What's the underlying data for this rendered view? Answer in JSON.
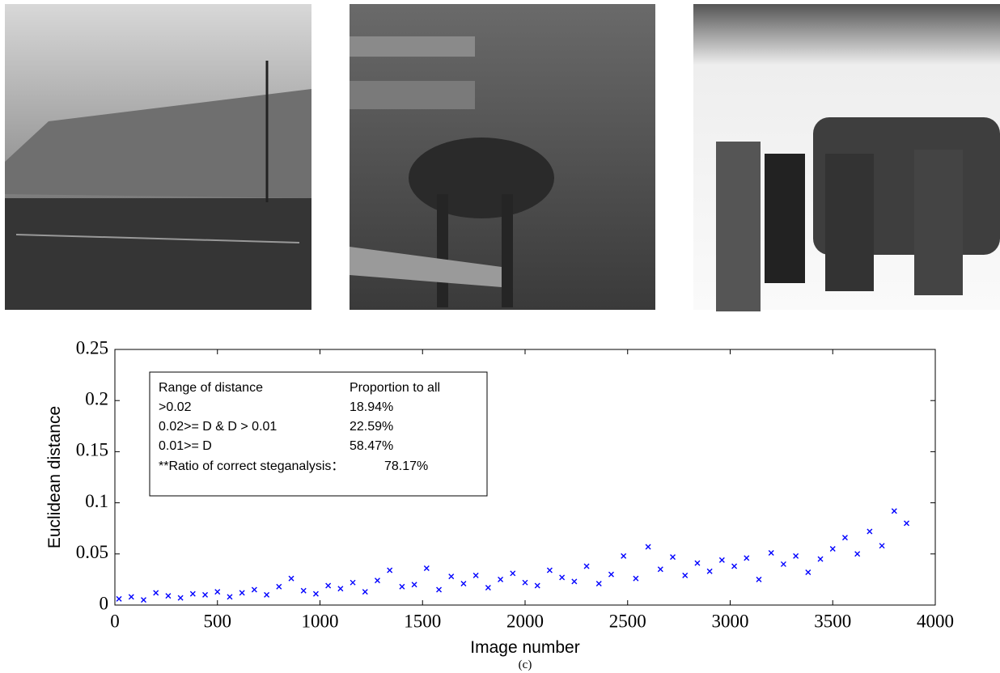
{
  "chart_data": {
    "type": "scatter",
    "marker": "x",
    "color": "#0000ff",
    "grid": false,
    "xlabel": "Image number",
    "ylabel": "Euclidean distance",
    "caption": "(c)",
    "xlim": [
      0,
      4000
    ],
    "xticks": [
      0,
      500,
      1000,
      1500,
      2000,
      2500,
      3000,
      3500,
      4000
    ],
    "ylim": [
      0,
      0.25
    ],
    "yticks": [
      0,
      0.05,
      0.1,
      0.15,
      0.2,
      0.25
    ],
    "x": [
      20,
      80,
      140,
      200,
      260,
      320,
      380,
      440,
      500,
      560,
      620,
      680,
      740,
      800,
      860,
      920,
      980,
      1040,
      1100,
      1160,
      1220,
      1280,
      1340,
      1400,
      1460,
      1520,
      1580,
      1640,
      1700,
      1760,
      1820,
      1880,
      1940,
      2000,
      2060,
      2120,
      2180,
      2240,
      2300,
      2360,
      2420,
      2480,
      2540,
      2600,
      2660,
      2720,
      2780,
      2840,
      2900,
      2960,
      3020,
      3080,
      3140,
      3200,
      3260,
      3320,
      3380,
      3440,
      3500,
      3560,
      3620,
      3680,
      3740,
      3800,
      3860
    ],
    "values": [
      0.006,
      0.008,
      0.005,
      0.012,
      0.009,
      0.007,
      0.011,
      0.01,
      0.013,
      0.008,
      0.012,
      0.015,
      0.01,
      0.018,
      0.026,
      0.014,
      0.011,
      0.019,
      0.016,
      0.022,
      0.013,
      0.024,
      0.034,
      0.018,
      0.02,
      0.036,
      0.015,
      0.028,
      0.021,
      0.029,
      0.017,
      0.025,
      0.031,
      0.022,
      0.019,
      0.034,
      0.027,
      0.023,
      0.038,
      0.021,
      0.03,
      0.048,
      0.026,
      0.057,
      0.035,
      0.047,
      0.029,
      0.041,
      0.033,
      0.044,
      0.038,
      0.046,
      0.025,
      0.051,
      0.04,
      0.048,
      0.032,
      0.045,
      0.055,
      0.066,
      0.05,
      0.072,
      0.058,
      0.092,
      0.08
    ],
    "annotation": {
      "rows": [
        [
          "Range of distance",
          "Proportion to all"
        ],
        [
          ">0.02",
          "18.94%"
        ],
        [
          "0.02>= D & D > 0.01",
          "22.59%"
        ],
        [
          "0.01>= D",
          "58.47%"
        ]
      ],
      "note": "**Ratio of correct steganalysis：",
      "note_value": "78.17%"
    }
  }
}
